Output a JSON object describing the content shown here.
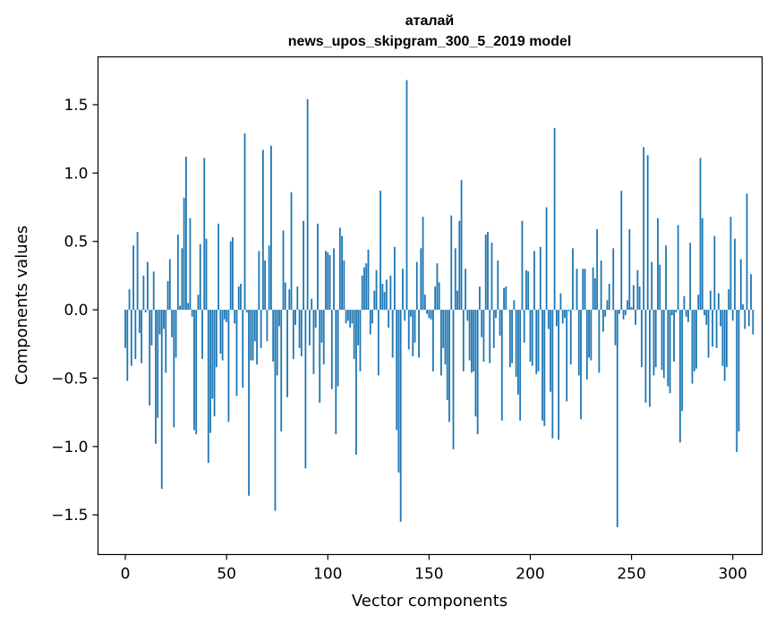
{
  "chart_data": {
    "type": "bar",
    "title": [
      "аталай",
      "news_upos_skipgram_300_5_2019 model"
    ],
    "xlabel": "Vector components",
    "ylabel": "Components values",
    "xlim": [
      -13.5,
      314.5
    ],
    "ylim": [
      -1.79,
      1.85
    ],
    "x_ticks": [
      0,
      50,
      100,
      150,
      200,
      250,
      300
    ],
    "x_tick_labels": [
      "0",
      "50",
      "100",
      "150",
      "200",
      "250",
      "300"
    ],
    "y_ticks": [
      -1.5,
      -1.0,
      -0.5,
      0.0,
      0.5,
      1.0,
      1.5
    ],
    "y_tick_labels": [
      "−1.5",
      "−1.0",
      "−0.5",
      "0.0",
      "0.5",
      "1.0",
      "1.5"
    ],
    "bar_color": "#1f77b4",
    "values": [
      -0.28,
      -0.52,
      0.15,
      -0.41,
      0.47,
      -0.36,
      0.57,
      -0.17,
      -0.39,
      0.25,
      -0.02,
      0.35,
      -0.7,
      -0.26,
      0.28,
      -0.98,
      -0.79,
      -0.18,
      -1.31,
      -0.14,
      -0.46,
      0.21,
      0.37,
      -0.2,
      -0.86,
      -0.35,
      0.55,
      0.03,
      0.45,
      0.82,
      1.12,
      0.05,
      0.67,
      -0.05,
      -0.88,
      -0.91,
      0.11,
      0.48,
      -0.36,
      1.11,
      0.52,
      -1.12,
      -0.9,
      -0.65,
      -0.78,
      -0.42,
      0.63,
      -0.32,
      -0.37,
      -0.07,
      -0.09,
      -0.82,
      0.5,
      0.53,
      -0.1,
      -0.63,
      0.17,
      0.19,
      -0.57,
      1.29,
      -0.02,
      -1.36,
      -0.37,
      -0.37,
      -0.23,
      -0.4,
      0.43,
      -0.28,
      1.17,
      0.36,
      -0.23,
      0.47,
      1.2,
      -0.38,
      -1.47,
      -0.48,
      -0.12,
      -0.89,
      0.58,
      0.2,
      -0.64,
      0.15,
      0.86,
      -0.36,
      -0.11,
      0.17,
      -0.28,
      -0.34,
      0.65,
      -1.16,
      1.54,
      -0.26,
      0.08,
      -0.47,
      -0.13,
      0.63,
      -0.68,
      -0.24,
      -0.4,
      0.43,
      0.42,
      0.4,
      -0.58,
      0.45,
      -0.91,
      -0.56,
      0.6,
      0.54,
      0.36,
      -0.1,
      -0.08,
      -0.13,
      -0.1,
      -0.36,
      -1.06,
      -0.26,
      -0.45,
      0.25,
      0.31,
      0.34,
      0.44,
      -0.18,
      -0.1,
      0.14,
      0.29,
      -0.48,
      0.87,
      0.19,
      0.13,
      0.22,
      -0.13,
      0.25,
      -0.35,
      0.46,
      -0.88,
      -1.19,
      -1.55,
      0.3,
      -0.08,
      1.68,
      -0.29,
      -0.05,
      -0.34,
      -0.24,
      0.35,
      -0.35,
      0.45,
      0.68,
      0.11,
      -0.03,
      -0.06,
      -0.07,
      -0.45,
      0.17,
      0.34,
      0.2,
      -0.48,
      -0.28,
      -0.4,
      -0.66,
      -0.82,
      0.69,
      -1.02,
      0.45,
      0.14,
      0.65,
      0.95,
      -0.45,
      0.3,
      -0.08,
      -0.37,
      -0.46,
      -0.45,
      -0.78,
      -0.91,
      0.17,
      -0.2,
      -0.38,
      0.55,
      0.57,
      -0.39,
      0.49,
      -0.28,
      -0.06,
      0.36,
      -0.19,
      -0.81,
      0.16,
      0.17,
      0.0,
      -0.42,
      -0.39,
      0.07,
      -0.49,
      -0.62,
      -0.81,
      0.65,
      -0.24,
      0.29,
      0.28,
      -0.38,
      -0.41,
      0.43,
      -0.47,
      -0.45,
      0.46,
      -0.81,
      -0.85,
      0.75,
      -0.14,
      -0.6,
      -0.94,
      1.33,
      -0.12,
      -0.95,
      0.12,
      -0.1,
      -0.06,
      -0.67,
      -0.01,
      -0.4,
      0.45,
      0.0,
      0.3,
      -0.48,
      -0.8,
      0.3,
      0.3,
      -0.51,
      -0.35,
      -0.37,
      0.31,
      0.23,
      0.59,
      -0.46,
      0.36,
      -0.16,
      -0.05,
      0.07,
      0.19,
      0.0,
      0.45,
      -0.26,
      -1.59,
      -0.03,
      0.87,
      -0.07,
      -0.04,
      0.07,
      0.59,
      0.02,
      0.18,
      -0.11,
      0.29,
      0.17,
      -0.42,
      1.19,
      -0.68,
      1.13,
      -0.71,
      0.35,
      -0.48,
      -0.42,
      0.67,
      0.33,
      -0.44,
      -0.5,
      0.47,
      -0.56,
      -0.61,
      -0.04,
      -0.38,
      -0.02,
      0.62,
      -0.97,
      -0.74,
      0.1,
      -0.05,
      -0.09,
      0.49,
      -0.54,
      -0.45,
      -0.43,
      0.11,
      1.11,
      0.67,
      -0.04,
      -0.11,
      -0.35,
      0.14,
      -0.27,
      0.54,
      -0.28,
      0.12,
      -0.12,
      -0.41,
      -0.52,
      -0.42,
      0.15,
      0.68,
      -0.08,
      0.52,
      -1.04,
      -0.89,
      0.37,
      0.04,
      -0.14,
      0.85,
      -0.12,
      0.26,
      -0.18
    ]
  }
}
